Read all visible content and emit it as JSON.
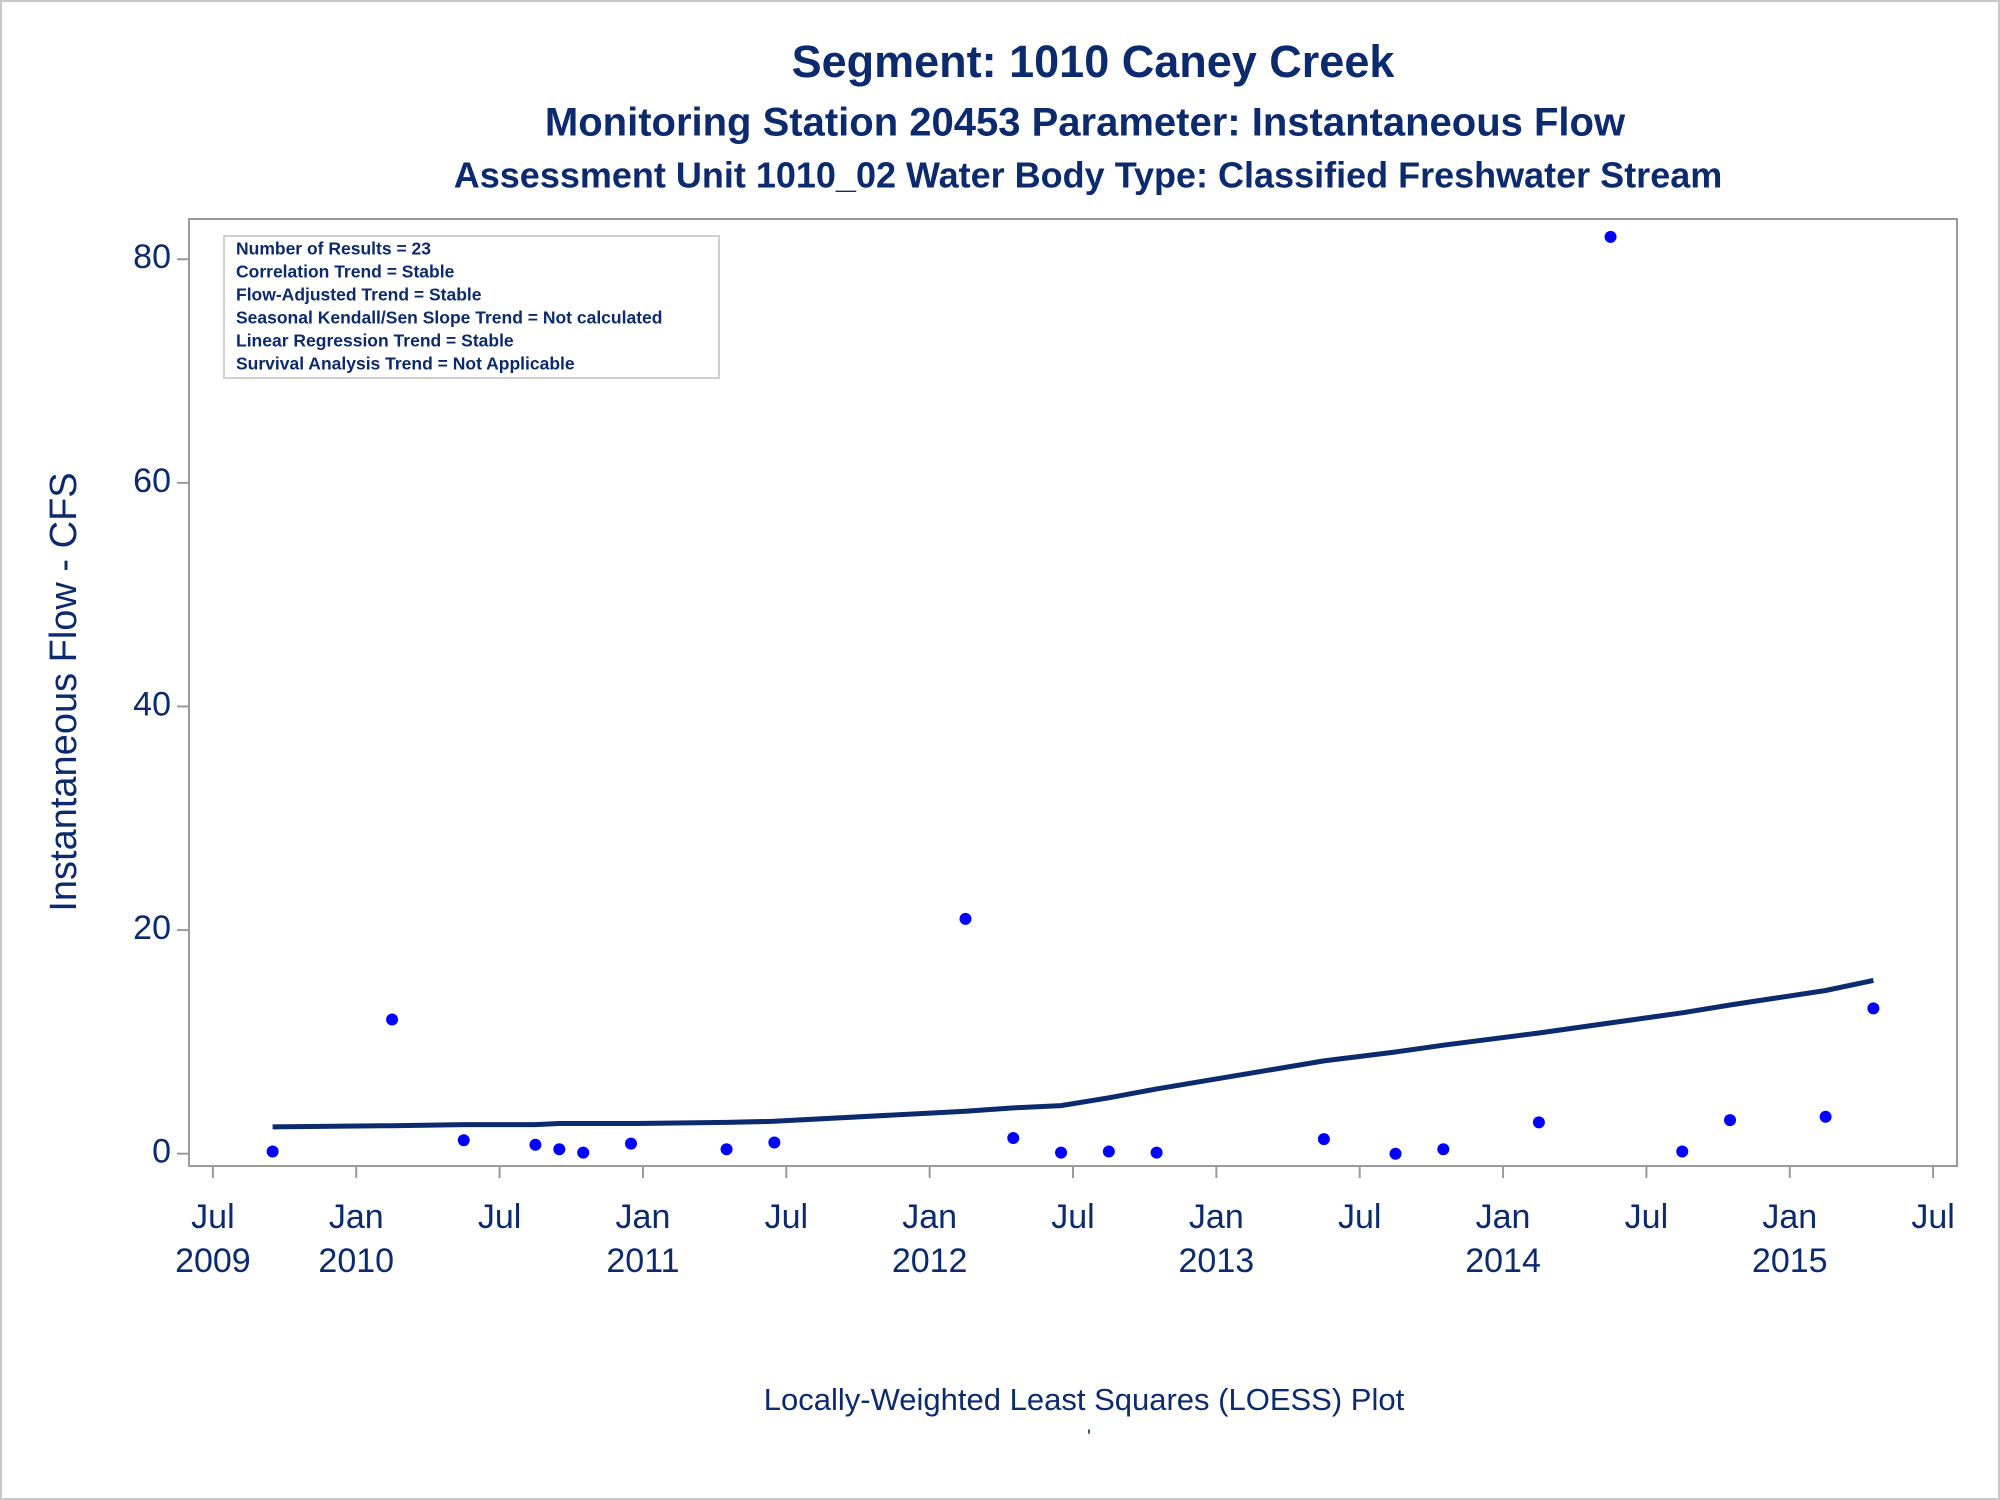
{
  "chart_data": {
    "type": "scatter",
    "title": "Segment: 1010  Caney Creek",
    "subtitle": "Monitoring Station 20453 Parameter: Instantaneous Flow",
    "subtitle2": "Assessment Unit 1010_02   Water Body Type: Classified Freshwater Stream",
    "y_label": "Instantaneous Flow - CFS",
    "footnote": "Locally-Weighted Least Squares (LOESS) Plot",
    "footnote2": "'",
    "stats": [
      "Number of Results = 23",
      "Correlation Trend = Stable",
      "Flow-Adjusted Trend = Stable",
      "Seasonal Kendall/Sen Slope Trend = Not calculated",
      "Linear Regression Trend = Stable",
      "Survival Analysis Trend = Not Applicable"
    ],
    "x": [
      "2009-09",
      "2010-02",
      "2010-05",
      "2010-08",
      "2010-09",
      "2010-10",
      "2010-12",
      "2011-04",
      "2011-06",
      "2012-02",
      "2012-04",
      "2012-06",
      "2012-08",
      "2012-10",
      "2013-05",
      "2013-08",
      "2013-10",
      "2014-02",
      "2014-05",
      "2014-08",
      "2014-10",
      "2015-02",
      "2015-04"
    ],
    "series": [
      {
        "type": "scatter",
        "color": "#0000ff",
        "values": [
          0.2,
          12,
          1.2,
          0.8,
          0.4,
          0.1,
          0.9,
          0.4,
          1.0,
          21,
          1.4,
          0.1,
          0.2,
          0.1,
          1.3,
          0.0,
          0.4,
          2.8,
          82,
          0.2,
          3.0,
          3.3,
          13
        ]
      },
      {
        "type": "line",
        "color": "#0c2a6e",
        "values": [
          2.4,
          2.5,
          2.6,
          2.6,
          2.7,
          2.7,
          2.7,
          2.8,
          2.9,
          3.8,
          4.1,
          4.3,
          5.0,
          5.8,
          8.3,
          9.1,
          9.7,
          10.8,
          11.7,
          12.6,
          13.3,
          14.6,
          15.5
        ]
      }
    ],
    "xlim": [
      "2009-06",
      "2015-08"
    ],
    "xticks": [
      {
        "value": "2009-07",
        "label": "Jul 2009"
      },
      {
        "value": "2010-01",
        "label": "Jan 2010"
      },
      {
        "value": "2010-07",
        "label": "Jul"
      },
      {
        "value": "2011-01",
        "label": "Jan 2011"
      },
      {
        "value": "2011-07",
        "label": "Jul"
      },
      {
        "value": "2012-01",
        "label": "Jan 2012"
      },
      {
        "value": "2012-07",
        "label": "Jul"
      },
      {
        "value": "2013-01",
        "label": "Jan 2013"
      },
      {
        "value": "2013-07",
        "label": "Jul"
      },
      {
        "value": "2014-01",
        "label": "Jan 2014"
      },
      {
        "value": "2014-07",
        "label": "Jul"
      },
      {
        "value": "2015-01",
        "label": "Jan 2015"
      },
      {
        "value": "2015-07",
        "label": "Jul"
      }
    ],
    "ylim": [
      -1.1,
      83.6
    ],
    "yticks": [
      0,
      20,
      40,
      60,
      80
    ],
    "grid": false
  }
}
